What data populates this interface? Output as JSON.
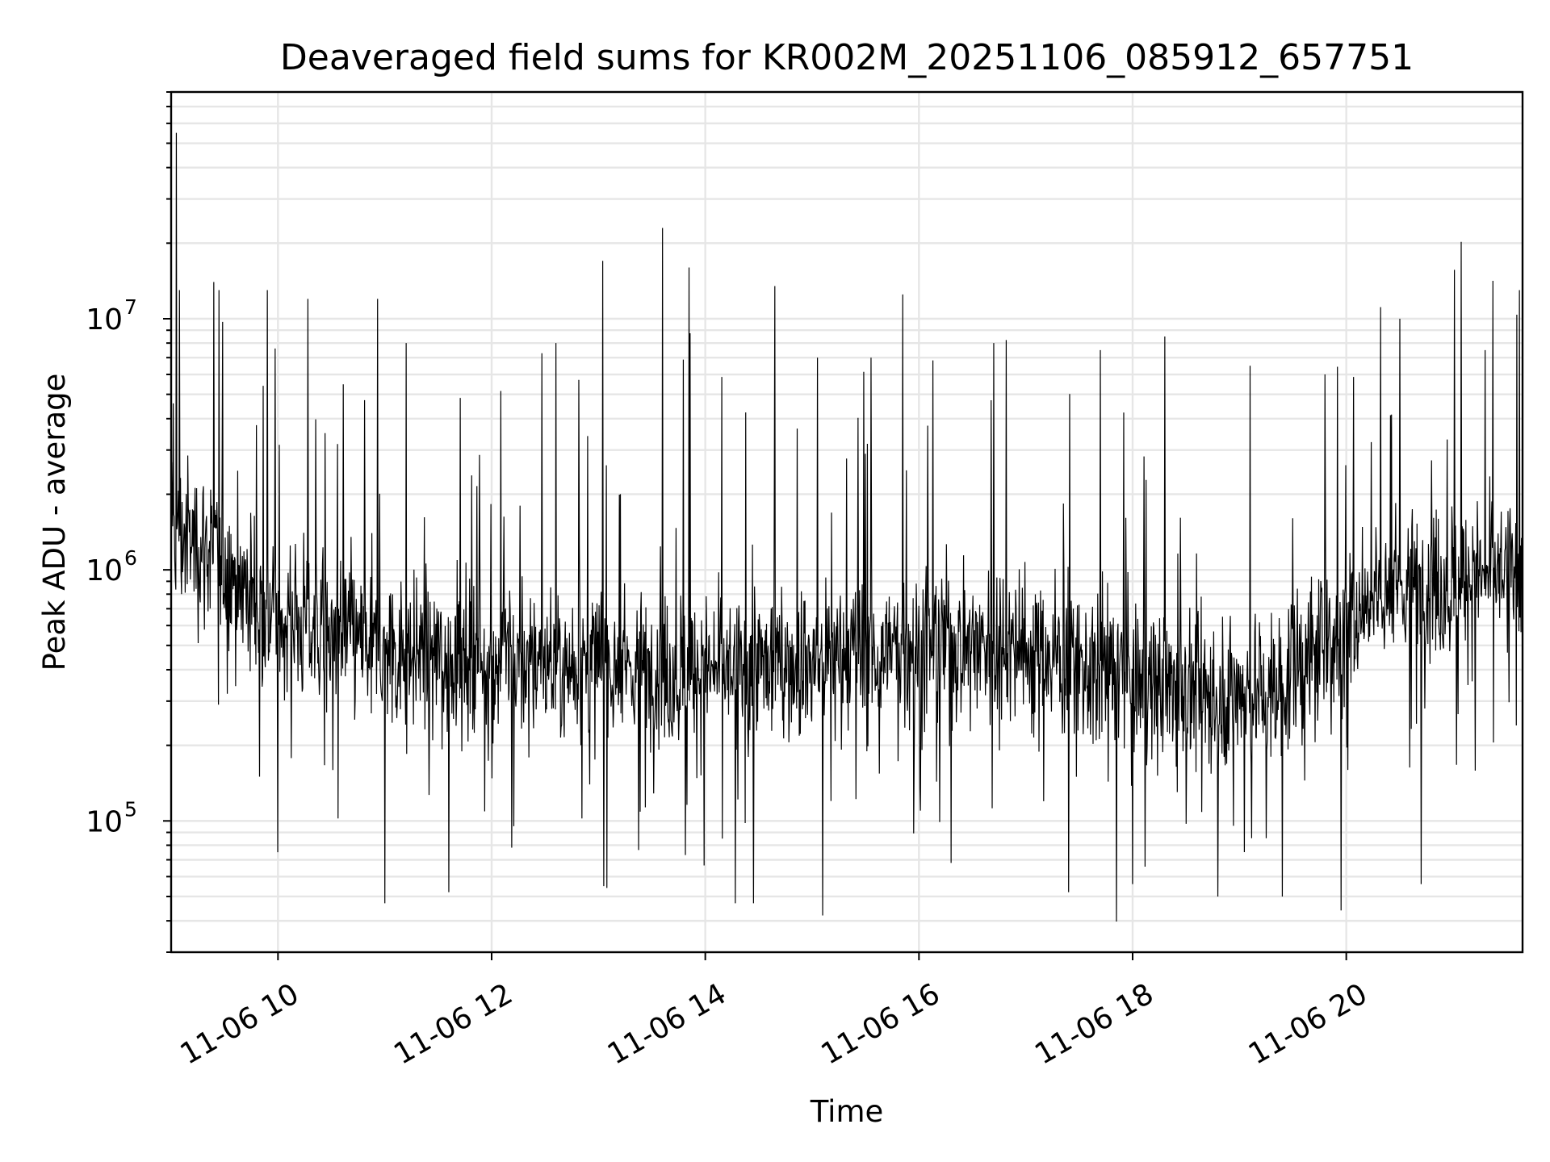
{
  "chart_data": {
    "type": "line",
    "title": "Deaveraged field sums for KR002M_20251106_085912_657751",
    "xlabel": "Time",
    "ylabel": "Peak ADU - average",
    "yscale": "log",
    "ylim": [
      30000,
      80000000
    ],
    "xlim_hours": [
      9.0,
      21.65
    ],
    "grid": true,
    "x_ticks": [
      {
        "hour": 10,
        "label": "11-06 10"
      },
      {
        "hour": 12,
        "label": "11-06 12"
      },
      {
        "hour": 14,
        "label": "11-06 14"
      },
      {
        "hour": 16,
        "label": "11-06 16"
      },
      {
        "hour": 18,
        "label": "11-06 18"
      },
      {
        "hour": 20,
        "label": "11-06 20"
      }
    ],
    "y_ticks": [
      {
        "value": 100000,
        "base": "10",
        "exp": "5"
      },
      {
        "value": 1000000,
        "base": "10",
        "exp": "6"
      },
      {
        "value": 10000000,
        "base": "10",
        "exp": "7"
      }
    ],
    "series": [
      {
        "name": "Peak ADU - average",
        "color": "#000000",
        "baseline": [
          [
            9.0,
            1400000
          ],
          [
            9.4,
            1200000
          ],
          [
            9.8,
            750000
          ],
          [
            10.3,
            600000
          ],
          [
            11.0,
            480000
          ],
          [
            12.0,
            440000
          ],
          [
            13.0,
            420000
          ],
          [
            14.0,
            390000
          ],
          [
            15.0,
            430000
          ],
          [
            16.0,
            500000
          ],
          [
            16.8,
            520000
          ],
          [
            17.5,
            420000
          ],
          [
            18.5,
            330000
          ],
          [
            19.3,
            330000
          ],
          [
            19.8,
            500000
          ],
          [
            20.3,
            850000
          ],
          [
            21.0,
            900000
          ],
          [
            21.65,
            1000000
          ]
        ],
        "spikes": [
          [
            9.02,
            4600000
          ],
          [
            9.05,
            55000000
          ],
          [
            9.08,
            13000000
          ],
          [
            9.4,
            14000000
          ],
          [
            9.45,
            13000000
          ],
          [
            9.9,
            13000000
          ],
          [
            10.28,
            12000000
          ],
          [
            10.93,
            12000000
          ],
          [
            11.2,
            8000000
          ],
          [
            12.6,
            8000000
          ],
          [
            13.04,
            17000000
          ],
          [
            13.6,
            23000000
          ],
          [
            13.85,
            16000000
          ],
          [
            14.65,
            13500000
          ],
          [
            15.05,
            7000000
          ],
          [
            15.55,
            7000000
          ],
          [
            15.85,
            12500000
          ],
          [
            16.7,
            8000000
          ],
          [
            17.7,
            7500000
          ],
          [
            18.3,
            8500000
          ],
          [
            19.1,
            6500000
          ],
          [
            19.8,
            6000000
          ],
          [
            20.5,
            10000000
          ],
          [
            21.3,
            7500000
          ],
          [
            21.62,
            13000000
          ]
        ],
        "dips": [
          [
            10.0,
            75000
          ],
          [
            11.0,
            47000
          ],
          [
            11.6,
            52000
          ],
          [
            13.05,
            55000
          ],
          [
            14.28,
            47000
          ],
          [
            14.45,
            47000
          ],
          [
            15.1,
            42000
          ],
          [
            16.3,
            68000
          ],
          [
            17.4,
            52000
          ],
          [
            18.0,
            56000
          ],
          [
            18.8,
            50000
          ],
          [
            19.4,
            50000
          ],
          [
            19.95,
            44000
          ],
          [
            20.7,
            56000
          ]
        ]
      }
    ]
  }
}
